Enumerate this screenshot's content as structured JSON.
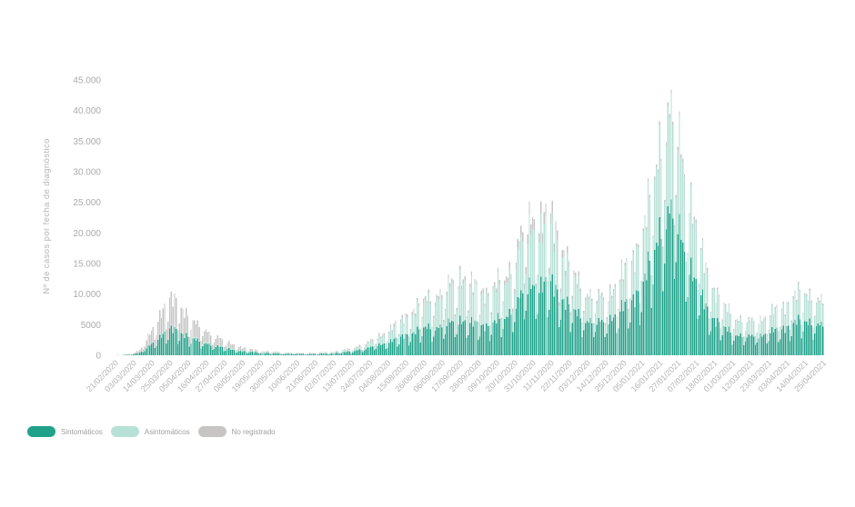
{
  "page": {
    "background": "#ffffff"
  },
  "chart_data": {
    "type": "bar",
    "stacked": true,
    "ylabel": "Nº de casos por fecha de diagnóstico",
    "xlabel": "",
    "ylim": [
      0,
      45000
    ],
    "grid": false,
    "legend_position": "bottom-left",
    "axis_text_color": "#ababab",
    "x_tick_text_color": "#b3b3b3",
    "y_ticks": [
      {
        "value": 0,
        "label": "0"
      },
      {
        "value": 5000,
        "label": "5000"
      },
      {
        "value": 10000,
        "label": "10.000"
      },
      {
        "value": 15000,
        "label": "15.000"
      },
      {
        "value": 20000,
        "label": "20.000"
      },
      {
        "value": 25000,
        "label": "25.000"
      },
      {
        "value": 30000,
        "label": "30.000"
      },
      {
        "value": 35000,
        "label": "35.000"
      },
      {
        "value": 40000,
        "label": "40.000"
      },
      {
        "value": 45000,
        "label": "45.000"
      }
    ],
    "date_range": {
      "start": "21/02/2020",
      "end": "25/04/2021"
    },
    "n_days": 430,
    "x_tick_interval_days": 11,
    "x_tick_labels": [
      "21/02/2020",
      "03/03/2020",
      "14/03/2020",
      "25/03/2020",
      "05/04/2020",
      "16/04/2020",
      "27/04/2020",
      "08/05/2020",
      "19/05/2020",
      "30/05/2020",
      "10/06/2020",
      "21/06/2020",
      "02/07/2020",
      "13/07/2020",
      "24/07/2020",
      "04/08/2020",
      "15/08/2020",
      "26/08/2020",
      "06/09/2020",
      "17/09/2020",
      "28/09/2020",
      "09/10/2020",
      "20/10/2020",
      "31/10/2020",
      "11/11/2020",
      "22/11/2020",
      "03/12/2020",
      "14/12/2020",
      "25/12/2020",
      "05/01/2021",
      "16/01/2021",
      "27/01/2021",
      "07/02/2021",
      "18/02/2021",
      "01/03/2021",
      "12/03/2021",
      "23/03/2021",
      "03/04/2021",
      "14/04/2021",
      "25/04/2021"
    ],
    "series": [
      {
        "name": "Sintomáticos",
        "color": "#20a28a"
      },
      {
        "name": "Asintomáticos",
        "color": "#b7e1d7"
      },
      {
        "name": "No registrado",
        "color": "#c6c5c4"
      }
    ],
    "weekday_factors": [
      0.85,
      1.0,
      0.93,
      0.47,
      0.6,
      0.88,
      1.0
    ],
    "envelope_format": [
      "day_index",
      "total_cases",
      "frac_sintomaticos",
      "frac_asintomaticos",
      "frac_no_registrado"
    ],
    "envelope_points": [
      [
        0,
        30,
        0.55,
        0.05,
        0.4
      ],
      [
        8,
        150,
        0.5,
        0.04,
        0.46
      ],
      [
        15,
        900,
        0.48,
        0.04,
        0.48
      ],
      [
        22,
        4200,
        0.46,
        0.03,
        0.51
      ],
      [
        28,
        7800,
        0.46,
        0.03,
        0.51
      ],
      [
        33,
        9800,
        0.46,
        0.03,
        0.51
      ],
      [
        38,
        9300,
        0.46,
        0.03,
        0.51
      ],
      [
        44,
        7200,
        0.47,
        0.04,
        0.49
      ],
      [
        50,
        5200,
        0.48,
        0.05,
        0.47
      ],
      [
        55,
        4600,
        0.48,
        0.06,
        0.46
      ],
      [
        60,
        3400,
        0.5,
        0.07,
        0.43
      ],
      [
        66,
        2600,
        0.5,
        0.08,
        0.42
      ],
      [
        77,
        1300,
        0.52,
        0.12,
        0.36
      ],
      [
        88,
        800,
        0.55,
        0.15,
        0.3
      ],
      [
        99,
        550,
        0.55,
        0.18,
        0.27
      ],
      [
        110,
        420,
        0.55,
        0.22,
        0.23
      ],
      [
        121,
        400,
        0.55,
        0.25,
        0.2
      ],
      [
        132,
        600,
        0.57,
        0.28,
        0.15
      ],
      [
        143,
        1200,
        0.57,
        0.3,
        0.13
      ],
      [
        154,
        2400,
        0.55,
        0.33,
        0.12
      ],
      [
        165,
        4300,
        0.53,
        0.37,
        0.1
      ],
      [
        176,
        6800,
        0.51,
        0.41,
        0.08
      ],
      [
        187,
        9800,
        0.49,
        0.45,
        0.06
      ],
      [
        198,
        11200,
        0.46,
        0.49,
        0.05
      ],
      [
        209,
        14400,
        0.44,
        0.51,
        0.05
      ],
      [
        215,
        12600,
        0.45,
        0.5,
        0.05
      ],
      [
        220,
        11800,
        0.46,
        0.48,
        0.06
      ],
      [
        226,
        11000,
        0.47,
        0.47,
        0.06
      ],
      [
        231,
        12500,
        0.48,
        0.46,
        0.06
      ],
      [
        237,
        14200,
        0.49,
        0.44,
        0.07
      ],
      [
        242,
        17500,
        0.5,
        0.43,
        0.07
      ],
      [
        248,
        22500,
        0.5,
        0.42,
        0.08
      ],
      [
        253,
        25200,
        0.51,
        0.41,
        0.08
      ],
      [
        258,
        23800,
        0.51,
        0.41,
        0.08
      ],
      [
        264,
        24500,
        0.52,
        0.4,
        0.08
      ],
      [
        269,
        20500,
        0.53,
        0.4,
        0.07
      ],
      [
        275,
        16000,
        0.54,
        0.4,
        0.06
      ],
      [
        281,
        12800,
        0.55,
        0.4,
        0.05
      ],
      [
        286,
        11200,
        0.56,
        0.39,
        0.05
      ],
      [
        292,
        10300,
        0.56,
        0.39,
        0.05
      ],
      [
        297,
        10500,
        0.57,
        0.385,
        0.045
      ],
      [
        303,
        12500,
        0.57,
        0.39,
        0.04
      ],
      [
        308,
        14500,
        0.58,
        0.39,
        0.03
      ],
      [
        314,
        17500,
        0.58,
        0.395,
        0.025
      ],
      [
        319,
        20500,
        0.58,
        0.4,
        0.02
      ],
      [
        325,
        28500,
        0.59,
        0.395,
        0.015
      ],
      [
        330,
        38000,
        0.59,
        0.395,
        0.015
      ],
      [
        335,
        42800,
        0.59,
        0.395,
        0.015
      ],
      [
        341,
        40500,
        0.58,
        0.405,
        0.015
      ],
      [
        346,
        32000,
        0.57,
        0.415,
        0.015
      ],
      [
        352,
        22000,
        0.56,
        0.42,
        0.02
      ],
      [
        358,
        15500,
        0.56,
        0.42,
        0.02
      ],
      [
        363,
        11500,
        0.55,
        0.425,
        0.025
      ],
      [
        369,
        8800,
        0.55,
        0.425,
        0.025
      ],
      [
        374,
        7200,
        0.55,
        0.42,
        0.03
      ],
      [
        380,
        6300,
        0.55,
        0.42,
        0.03
      ],
      [
        385,
        6000,
        0.55,
        0.42,
        0.03
      ],
      [
        391,
        6500,
        0.55,
        0.42,
        0.03
      ],
      [
        396,
        7200,
        0.55,
        0.42,
        0.03
      ],
      [
        402,
        8200,
        0.55,
        0.42,
        0.03
      ],
      [
        407,
        9000,
        0.55,
        0.42,
        0.03
      ],
      [
        413,
        10800,
        0.55,
        0.42,
        0.03
      ],
      [
        418,
        11000,
        0.55,
        0.42,
        0.03
      ],
      [
        424,
        10400,
        0.55,
        0.42,
        0.03
      ],
      [
        429,
        9300,
        0.55,
        0.42,
        0.03
      ]
    ]
  }
}
